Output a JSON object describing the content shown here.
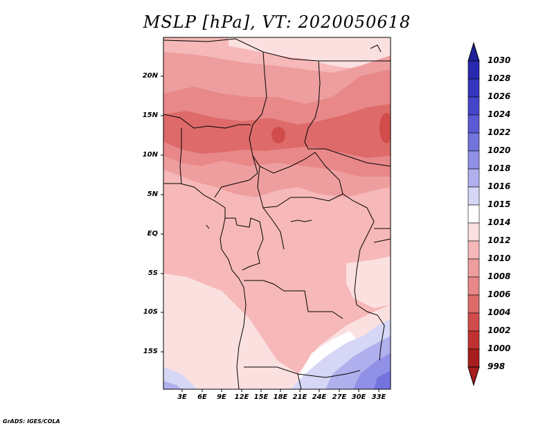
{
  "title": "MSLP [hPa], VT: 2020050618",
  "footer": "GrADS: IGES/COLA",
  "map_data": {
    "variable": "MSLP",
    "units": "hPa",
    "valid_time": "2020050618",
    "lat_labels": [
      "20N",
      "15N",
      "10N",
      "5N",
      "EQ",
      "5S",
      "10S",
      "15S"
    ],
    "lon_labels": [
      "3E",
      "6E",
      "9E",
      "12E",
      "15E",
      "18E",
      "21E",
      "24E",
      "27E",
      "30E",
      "33E"
    ],
    "colorbar_levels": [
      "1030",
      "1028",
      "1026",
      "1024",
      "1022",
      "1020",
      "1018",
      "1016",
      "1015",
      "1014",
      "1012",
      "1010",
      "1008",
      "1006",
      "1004",
      "1002",
      "1000",
      "998"
    ],
    "colorbar_colors": [
      "#20209a",
      "#2828b0",
      "#3535c0",
      "#4545cc",
      "#5a5ad6",
      "#7373de",
      "#9090e6",
      "#b0b0ee",
      "#d6d6f6",
      "#ffffff",
      "#fbe0e0",
      "#f6b8b8",
      "#ee9e9e",
      "#e88888",
      "#de6a6a",
      "#d24c4c",
      "#c03232",
      "#a81e1e"
    ]
  }
}
